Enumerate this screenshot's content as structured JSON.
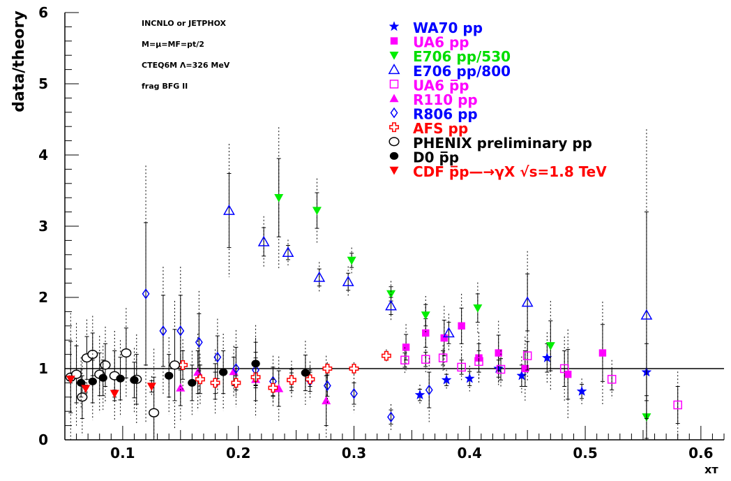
{
  "chart_data": {
    "type": "scatter",
    "title": "",
    "xlabel": "xᴛ",
    "ylabel": "data/theory",
    "xlim": [
      0.05,
      0.62
    ],
    "ylim": [
      0,
      6
    ],
    "xticks": [
      0.1,
      0.2,
      0.3,
      0.4,
      0.5,
      0.6
    ],
    "yticks": [
      0,
      1,
      2,
      3,
      4,
      5,
      6
    ],
    "xtick_labels": [
      "0.1",
      "0.2",
      "0.3",
      "0.4",
      "0.5",
      "0.6"
    ],
    "ytick_labels": [
      "0",
      "1",
      "2",
      "3",
      "4",
      "5",
      "6"
    ],
    "reference_line": 1,
    "legend_position": "top-right",
    "annotations": [
      "INCNLO or JETPHOX",
      "M=μ=MF=pt/2",
      "CTEQ6M Λ=326 MeV",
      "frag  BFG II"
    ],
    "series": [
      {
        "name": "WA70 pp",
        "marker": "star",
        "color": "#0000ff",
        "points": [
          [
            0.357,
            0.63,
            0.08,
            0.08
          ],
          [
            0.38,
            0.84,
            0.08,
            0.08
          ],
          [
            0.4,
            0.86,
            0.1,
            0.1
          ],
          [
            0.425,
            1.0,
            0.12,
            0.12
          ],
          [
            0.445,
            0.9,
            0.15,
            0.15
          ],
          [
            0.467,
            1.15,
            0.2,
            0.2
          ],
          [
            0.497,
            0.68,
            0.1,
            0.1
          ],
          [
            0.553,
            0.95,
            0.4,
            0.4
          ]
        ]
      },
      {
        "name": "UA6 pp",
        "marker": "square",
        "color": "#ff00ff",
        "points": [
          [
            0.345,
            1.3,
            0.18,
            0.18
          ],
          [
            0.362,
            1.5,
            0.2,
            0.2
          ],
          [
            0.378,
            1.43,
            0.25,
            0.25
          ],
          [
            0.393,
            1.6,
            0.25,
            0.25
          ],
          [
            0.408,
            1.15,
            0.2,
            0.2
          ],
          [
            0.425,
            1.22,
            0.25,
            0.25
          ],
          [
            0.448,
            1.0,
            0.25,
            0.25
          ],
          [
            0.485,
            0.92,
            0.35,
            0.35
          ],
          [
            0.515,
            1.22,
            0.4,
            0.4
          ]
        ]
      },
      {
        "name": "E706 pp/530",
        "marker": "triangle-down",
        "color": "#00ee00",
        "points": [
          [
            0.235,
            3.4,
            0.55,
            0.55
          ],
          [
            0.268,
            3.22,
            0.25,
            0.25
          ],
          [
            0.298,
            2.52,
            0.1,
            0.1
          ],
          [
            0.332,
            2.05,
            0.1,
            0.1
          ],
          [
            0.362,
            1.75,
            0.15,
            0.15
          ],
          [
            0.407,
            1.85,
            0.2,
            0.2
          ],
          [
            0.47,
            1.32,
            0.35,
            0.35
          ],
          [
            0.553,
            0.32,
            0.3,
            0.3
          ]
        ]
      },
      {
        "name": "E706 pp/800",
        "marker": "triangle-open",
        "color": "#0000ff",
        "points": [
          [
            0.192,
            3.22,
            0.52,
            0.52
          ],
          [
            0.222,
            2.78,
            0.2,
            0.2
          ],
          [
            0.243,
            2.63,
            0.1,
            0.1
          ],
          [
            0.27,
            2.28,
            0.12,
            0.12
          ],
          [
            0.295,
            2.22,
            0.12,
            0.12
          ],
          [
            0.332,
            1.88,
            0.12,
            0.12
          ],
          [
            0.382,
            1.5,
            0.15,
            0.15
          ],
          [
            0.45,
            1.93,
            0.4,
            0.4
          ],
          [
            0.553,
            1.75,
            1.45,
            1.45
          ]
        ]
      },
      {
        "name": "UA6 p̅p",
        "marker": "square-open",
        "color": "#ff00ff",
        "points": [
          [
            0.344,
            1.12,
            0.1,
            0.1
          ],
          [
            0.362,
            1.13,
            0.1,
            0.1
          ],
          [
            0.377,
            1.15,
            0.1,
            0.1
          ],
          [
            0.393,
            1.02,
            0.1,
            0.1
          ],
          [
            0.408,
            1.1,
            0.15,
            0.15
          ],
          [
            0.427,
            0.99,
            0.15,
            0.15
          ],
          [
            0.45,
            1.18,
            0.2,
            0.2
          ],
          [
            0.482,
            1.0,
            0.25,
            0.25
          ],
          [
            0.523,
            0.85,
            0.15,
            0.15
          ],
          [
            0.58,
            0.49,
            0.26,
            0.26
          ]
        ]
      },
      {
        "name": "R110 pp",
        "marker": "triangle",
        "color": "#ff00ff",
        "points": [
          [
            0.15,
            0.73,
            0.25,
            0.25
          ],
          [
            0.165,
            0.95,
            0.3,
            0.3
          ],
          [
            0.18,
            0.82,
            0.25,
            0.25
          ],
          [
            0.196,
            0.96,
            0.2,
            0.2
          ],
          [
            0.215,
            0.85,
            0.3,
            0.3
          ],
          [
            0.235,
            0.72,
            0.25,
            0.25
          ],
          [
            0.276,
            0.55,
            0.35,
            0.35
          ]
        ]
      },
      {
        "name": "R806 pp",
        "marker": "diamond-open",
        "color": "#0000ff",
        "points": [
          [
            0.12,
            2.05,
            1.0,
            1.0
          ],
          [
            0.135,
            1.53,
            0.5,
            0.5
          ],
          [
            0.15,
            1.53,
            0.5,
            0.5
          ],
          [
            0.166,
            1.37,
            0.4,
            0.4
          ],
          [
            0.182,
            1.16,
            0.3,
            0.3
          ],
          [
            0.198,
            1.0,
            0.3,
            0.3
          ],
          [
            0.215,
            0.98,
            0.25,
            0.25
          ],
          [
            0.23,
            0.82,
            0.2,
            0.2
          ],
          [
            0.246,
            0.84,
            0.15,
            0.15
          ],
          [
            0.262,
            0.83,
            0.15,
            0.15
          ],
          [
            0.277,
            0.76,
            0.15,
            0.15
          ],
          [
            0.3,
            0.65,
            0.15,
            0.15
          ],
          [
            0.332,
            0.32,
            0.1,
            0.1
          ],
          [
            0.365,
            0.7,
            0.25,
            0.25
          ]
        ]
      },
      {
        "name": "AFS pp",
        "marker": "cross-open",
        "color": "#ff0000",
        "points": [
          [
            0.152,
            1.05,
            0.2,
            0.2
          ],
          [
            0.167,
            0.85,
            0.2,
            0.2
          ],
          [
            0.18,
            0.8,
            0.15,
            0.15
          ],
          [
            0.198,
            0.8,
            0.1,
            0.1
          ],
          [
            0.215,
            0.88,
            0.12,
            0.12
          ],
          [
            0.23,
            0.73,
            0.12,
            0.12
          ],
          [
            0.246,
            0.84,
            0.1,
            0.1
          ],
          [
            0.262,
            0.85,
            0.1,
            0.1
          ],
          [
            0.277,
            1.0,
            0.05,
            0.05
          ],
          [
            0.3,
            1.0,
            0.05,
            0.05
          ],
          [
            0.328,
            1.18,
            0.05,
            0.05
          ]
        ]
      },
      {
        "name": "PHENIX preliminary pp",
        "marker": "circle-open",
        "color": "#000000",
        "points": [
          [
            0.055,
            0.88,
            0.5,
            0.5
          ],
          [
            0.06,
            0.92,
            0.4,
            0.4
          ],
          [
            0.065,
            0.6,
            0.3,
            0.3
          ],
          [
            0.069,
            1.15,
            0.3,
            0.3
          ],
          [
            0.074,
            1.2,
            0.3,
            0.3
          ],
          [
            0.08,
            0.92,
            0.3,
            0.3
          ],
          [
            0.085,
            1.05,
            0.3,
            0.3
          ],
          [
            0.093,
            0.9,
            0.35,
            0.35
          ],
          [
            0.103,
            1.22,
            0.35,
            0.35
          ],
          [
            0.112,
            0.85,
            0.35,
            0.35
          ],
          [
            0.127,
            0.38,
            0.5,
            0.5
          ],
          [
            0.145,
            1.05,
            0.5,
            0.5
          ]
        ]
      },
      {
        "name": "D0 p̅p",
        "marker": "circle",
        "color": "#000000",
        "points": [
          [
            0.064,
            0.8,
            0.2,
            0.2
          ],
          [
            0.074,
            0.82,
            0.3,
            0.3
          ],
          [
            0.083,
            0.87,
            0.25,
            0.25
          ],
          [
            0.098,
            0.86,
            0.3,
            0.3
          ],
          [
            0.11,
            0.84,
            0.25,
            0.25
          ],
          [
            0.14,
            0.9,
            0.3,
            0.3
          ],
          [
            0.16,
            0.8,
            0.25,
            0.25
          ],
          [
            0.187,
            0.95,
            0.3,
            0.3
          ],
          [
            0.215,
            1.07,
            0.3,
            0.3
          ],
          [
            0.258,
            0.94,
            0.25,
            0.25
          ]
        ]
      },
      {
        "name": "CDF p̅p—→γX √s=1.8 TeV",
        "marker": "triangle-down",
        "color": "#ff0000",
        "points": [
          [
            0.055,
            0.85,
            0.05,
            0.05
          ],
          [
            0.068,
            0.72,
            0.05,
            0.05
          ],
          [
            0.093,
            0.65,
            0.05,
            0.05
          ],
          [
            0.125,
            0.75,
            0.08,
            0.08
          ]
        ]
      }
    ]
  }
}
